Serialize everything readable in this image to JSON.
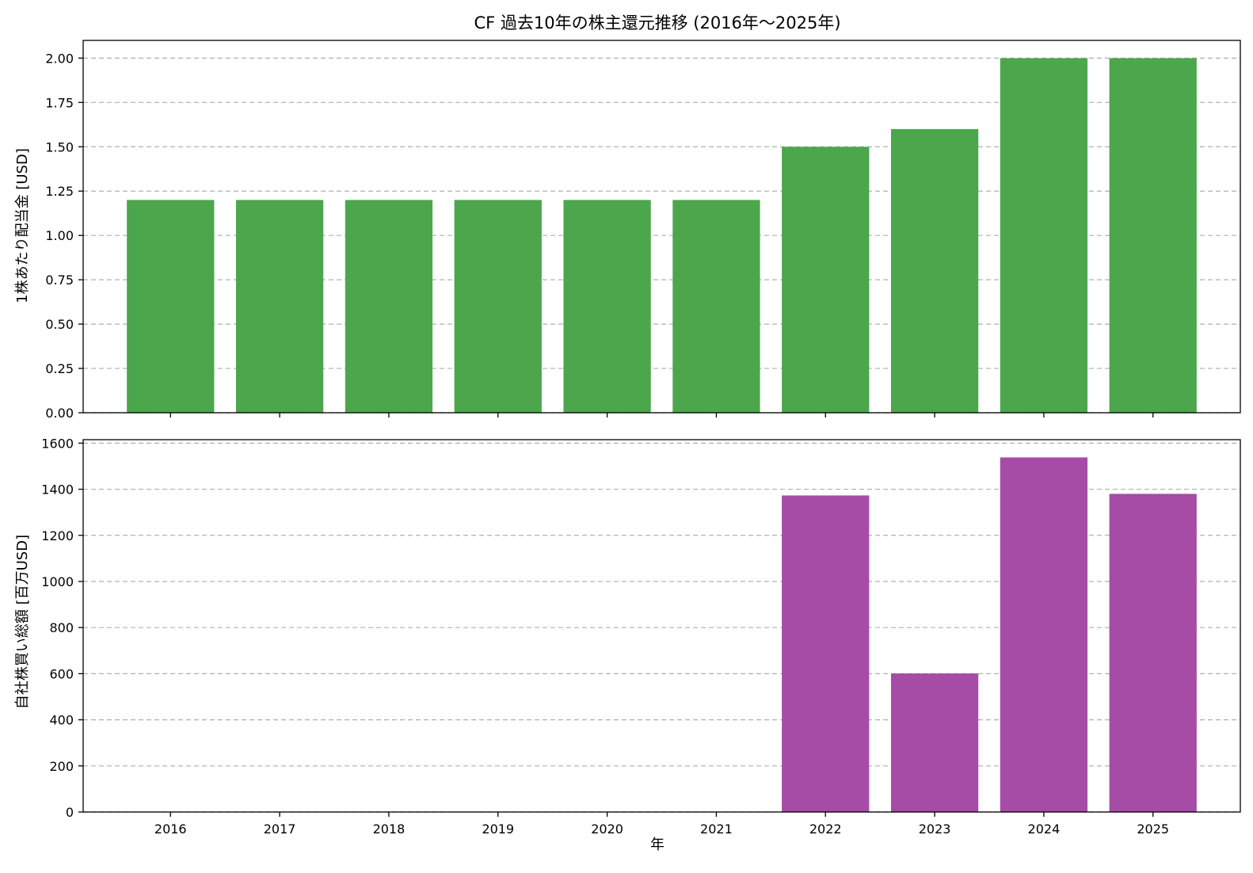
{
  "chart_data": {
    "title": "CF 過去10年の株主還元推移 (2016年～2025年)",
    "xlabel": "年",
    "categories": [
      "2016",
      "2017",
      "2018",
      "2019",
      "2020",
      "2021",
      "2022",
      "2023",
      "2024",
      "2025"
    ],
    "subplots": [
      {
        "type": "bar",
        "ylabel": "1株あたり配当金 [USD]",
        "series": [
          {
            "values": [
              1.2,
              1.2,
              1.2,
              1.2,
              1.2,
              1.2,
              1.5,
              1.6,
              2.0,
              2.0
            ],
            "color": "#4ca64c"
          }
        ],
        "ylim": [
          0,
          2.1
        ],
        "yticks": [
          0.0,
          0.25,
          0.5,
          0.75,
          1.0,
          1.25,
          1.5,
          1.75,
          2.0
        ],
        "ytick_labels": [
          "0.00",
          "0.25",
          "0.50",
          "0.75",
          "1.00",
          "1.25",
          "1.50",
          "1.75",
          "2.00"
        ],
        "grid": true
      },
      {
        "type": "bar",
        "ylabel": "自社株買い総額 [百万USD]",
        "series": [
          {
            "values": [
              0,
              0,
              0,
              0,
              0,
              0,
              1373,
              601,
              1538,
              1380
            ],
            "color": "#a64ca6"
          }
        ],
        "ylim": [
          0,
          1615
        ],
        "yticks": [
          0,
          200,
          400,
          600,
          800,
          1000,
          1200,
          1400,
          1600
        ],
        "ytick_labels": [
          "0",
          "200",
          "400",
          "600",
          "800",
          "1000",
          "1200",
          "1400",
          "1600"
        ],
        "grid": true
      }
    ]
  }
}
